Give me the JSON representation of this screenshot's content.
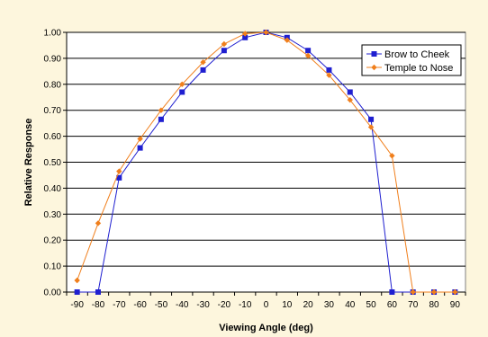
{
  "chart_data": {
    "type": "line",
    "xlabel": "Viewing Angle (deg)",
    "ylabel": "Relative Response",
    "x": [
      -90,
      -80,
      -70,
      -60,
      -50,
      -40,
      -30,
      -20,
      -10,
      0,
      10,
      20,
      30,
      40,
      50,
      60,
      70,
      80,
      90
    ],
    "ylim": [
      0,
      1.0
    ],
    "yticks": [
      "0.00",
      "0.10",
      "0.20",
      "0.30",
      "0.40",
      "0.50",
      "0.60",
      "0.70",
      "0.80",
      "0.90",
      "1.00"
    ],
    "grid": "horizontal",
    "legend_position": "top-right",
    "series": [
      {
        "name": "Brow to Cheek",
        "color": "#1f1fd0",
        "marker": "square",
        "values": [
          0.0,
          0.0,
          0.44,
          0.555,
          0.665,
          0.77,
          0.855,
          0.93,
          0.98,
          1.0,
          0.98,
          0.93,
          0.855,
          0.77,
          0.665,
          0.0,
          0.0,
          0.0,
          0.0
        ]
      },
      {
        "name": "Temple to Nose",
        "color": "#f07f1c",
        "marker": "diamond",
        "values": [
          0.045,
          0.265,
          0.465,
          0.59,
          0.7,
          0.8,
          0.885,
          0.955,
          0.995,
          1.0,
          0.97,
          0.91,
          0.835,
          0.74,
          0.635,
          0.525,
          0.0,
          0.0,
          0.0
        ]
      }
    ]
  }
}
